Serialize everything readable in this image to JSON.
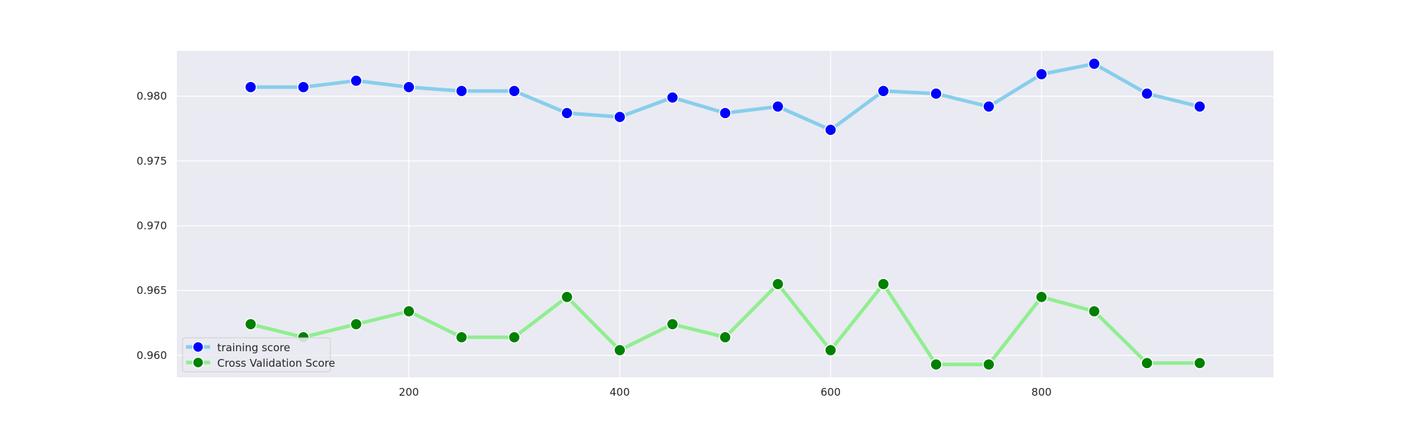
{
  "chart_data": {
    "type": "line",
    "title": "",
    "xlabel": "",
    "ylabel": "",
    "xlim": [
      -20,
      1020
    ],
    "ylim": [
      0.9583,
      0.9835
    ],
    "x_ticks": [
      200,
      400,
      600,
      800
    ],
    "x_tick_labels": [
      "200",
      "400",
      "600",
      "800"
    ],
    "y_ticks": [
      0.96,
      0.965,
      0.97,
      0.975,
      0.98
    ],
    "y_tick_labels": [
      "0.960",
      "0.965",
      "0.970",
      "0.975",
      "0.980"
    ],
    "grid": true,
    "legend_position": "lower-left",
    "x": [
      50,
      100,
      150,
      200,
      250,
      300,
      350,
      400,
      450,
      500,
      550,
      600,
      650,
      700,
      750,
      800,
      850,
      900,
      950
    ],
    "series": [
      {
        "name": "training score",
        "line_color": "#87ceeb",
        "marker_color": "#0000ff",
        "values": [
          0.9807,
          0.9807,
          0.9812,
          0.9807,
          0.9804,
          0.9804,
          0.9787,
          0.9784,
          0.9799,
          0.9787,
          0.9792,
          0.9774,
          0.9804,
          0.9802,
          0.9792,
          0.9817,
          0.9825,
          0.9802,
          0.9792
        ]
      },
      {
        "name": "Cross Validation Score",
        "line_color": "#90ee90",
        "marker_color": "#008000",
        "values": [
          0.9624,
          0.9614,
          0.9624,
          0.9634,
          0.9614,
          0.9614,
          0.9645,
          0.9604,
          0.9624,
          0.9614,
          0.9655,
          0.9604,
          0.9655,
          0.9593,
          0.9593,
          0.9645,
          0.9634,
          0.9594,
          0.9594
        ]
      }
    ]
  },
  "colors": {
    "plot_background": "#eaeaf2",
    "grid": "#ffffff",
    "text": "#262626"
  }
}
